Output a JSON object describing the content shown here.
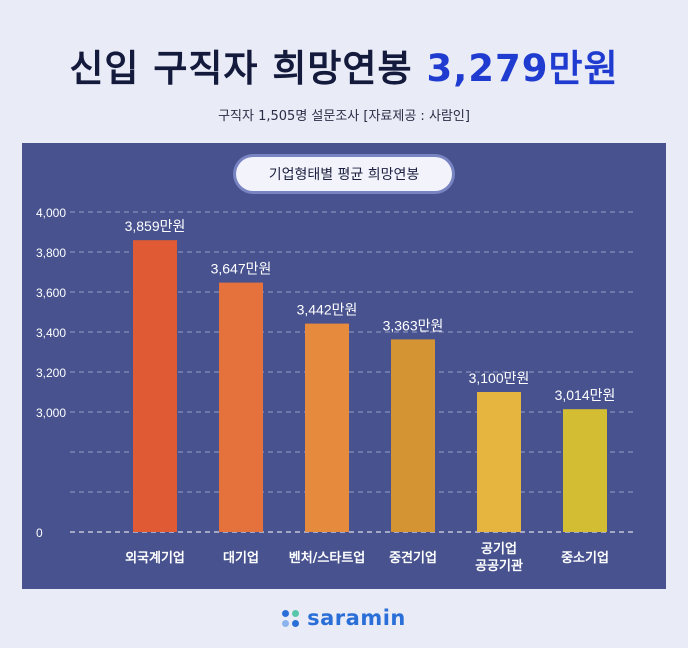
{
  "header": {
    "title": "신입 구직자 희망연봉",
    "title_highlight": "3,279만원",
    "subtitle": "구직자 1,505명 설문조사 [자료제공 : 사람인]"
  },
  "chart_data": {
    "type": "bar",
    "title": "기업형태별 평균 희망연봉",
    "categories": [
      "외국계기업",
      "대기업",
      "벤처/스타트업",
      "중견기업",
      "공기업\n공공기관",
      "중소기업"
    ],
    "values": [
      3859,
      3647,
      3442,
      3363,
      3100,
      3014
    ],
    "value_labels": [
      "3,859만원",
      "3,647만원",
      "3,442만원",
      "3,363만원",
      "3,100만원",
      "3,014만원"
    ],
    "yticks": [
      "0",
      "3,000",
      "3,200",
      "3,400",
      "3,600",
      "3,800",
      "4,000"
    ],
    "ylim": [
      0,
      4000
    ],
    "axis_break": [
      0,
      2400
    ],
    "grid": true,
    "colors": [
      "#e05a34",
      "#e5713c",
      "#e68a3e",
      "#d49433",
      "#e6b540",
      "#d3bd33"
    ]
  },
  "footer": {
    "logo_text": "saramin",
    "logo_dot_colors": [
      "#2a6fd8",
      "#58c6a8",
      "#8cb4ec",
      "#2a6fd8"
    ]
  }
}
